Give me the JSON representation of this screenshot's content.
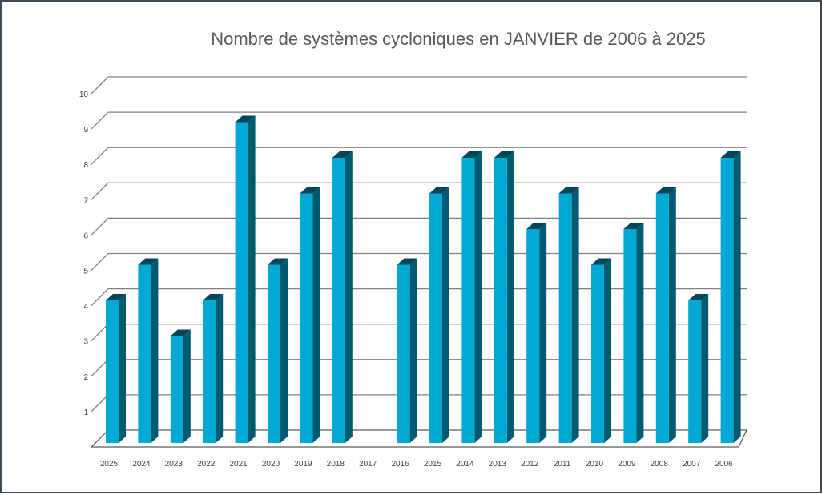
{
  "chart_data": {
    "type": "bar",
    "title": "Nombre de systèmes cycloniques en JANVIER de 2006 à 2025",
    "xlabel": "",
    "ylabel": "",
    "ylim": [
      0,
      10
    ],
    "yticks": [
      "1",
      "2",
      "3",
      "4",
      "5",
      "6",
      "7",
      "8",
      "9",
      "10"
    ],
    "grid": true,
    "categories": [
      "2025",
      "2024",
      "2023",
      "2022",
      "2021",
      "2020",
      "2019",
      "2018",
      "2017",
      "2016",
      "2015",
      "2014",
      "2013",
      "2012",
      "2011",
      "2010",
      "2009",
      "2008",
      "2007",
      "2006"
    ],
    "values": [
      4,
      5,
      3,
      4,
      9,
      5,
      7,
      8,
      0,
      5,
      7,
      8,
      8,
      6,
      7,
      5,
      6,
      7,
      4,
      8
    ],
    "colors": {
      "front": "#00a9d4",
      "side": "#005a70",
      "top": "#00465a",
      "grid": "#808080"
    }
  }
}
